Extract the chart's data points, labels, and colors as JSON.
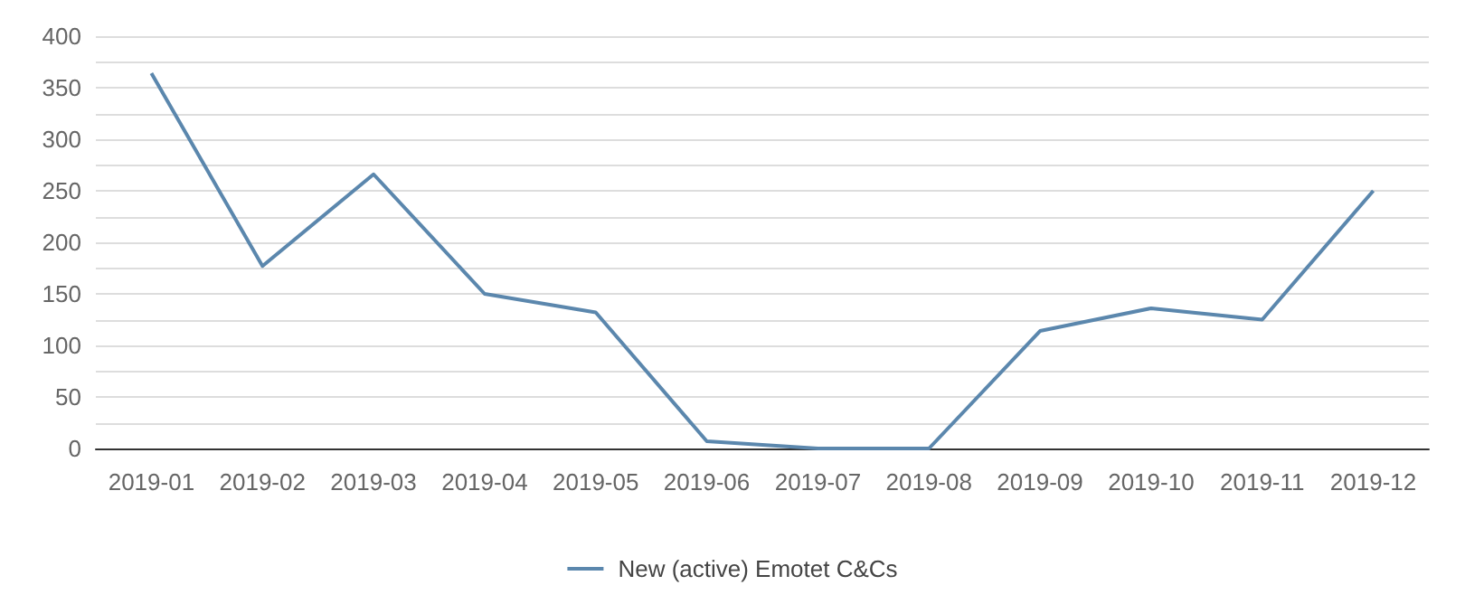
{
  "chart_data": {
    "type": "line",
    "categories": [
      "2019-01",
      "2019-02",
      "2019-03",
      "2019-04",
      "2019-05",
      "2019-06",
      "2019-07",
      "2019-08",
      "2019-09",
      "2019-10",
      "2019-11",
      "2019-12"
    ],
    "series": [
      {
        "name": "New (active) Emotet C&Cs",
        "color": "#5b87ad",
        "values": [
          364,
          177,
          266,
          150,
          132,
          7,
          0,
          0,
          114,
          136,
          125,
          250
        ]
      }
    ],
    "ylim": [
      0,
      400
    ],
    "yticks": [
      0,
      {
        "value": 25,
        "label": null
      },
      50,
      {
        "value": 75,
        "label": null
      },
      100,
      {
        "value": 125,
        "label": null
      },
      150,
      {
        "value": 175,
        "label": null
      },
      200,
      {
        "value": 225,
        "label": null
      },
      250,
      {
        "value": 275,
        "label": null
      },
      300,
      {
        "value": 325,
        "label": null
      },
      350,
      {
        "value": 375,
        "label": null
      },
      400
    ],
    "grid": "y",
    "legend": "bottom",
    "marker": "none"
  }
}
